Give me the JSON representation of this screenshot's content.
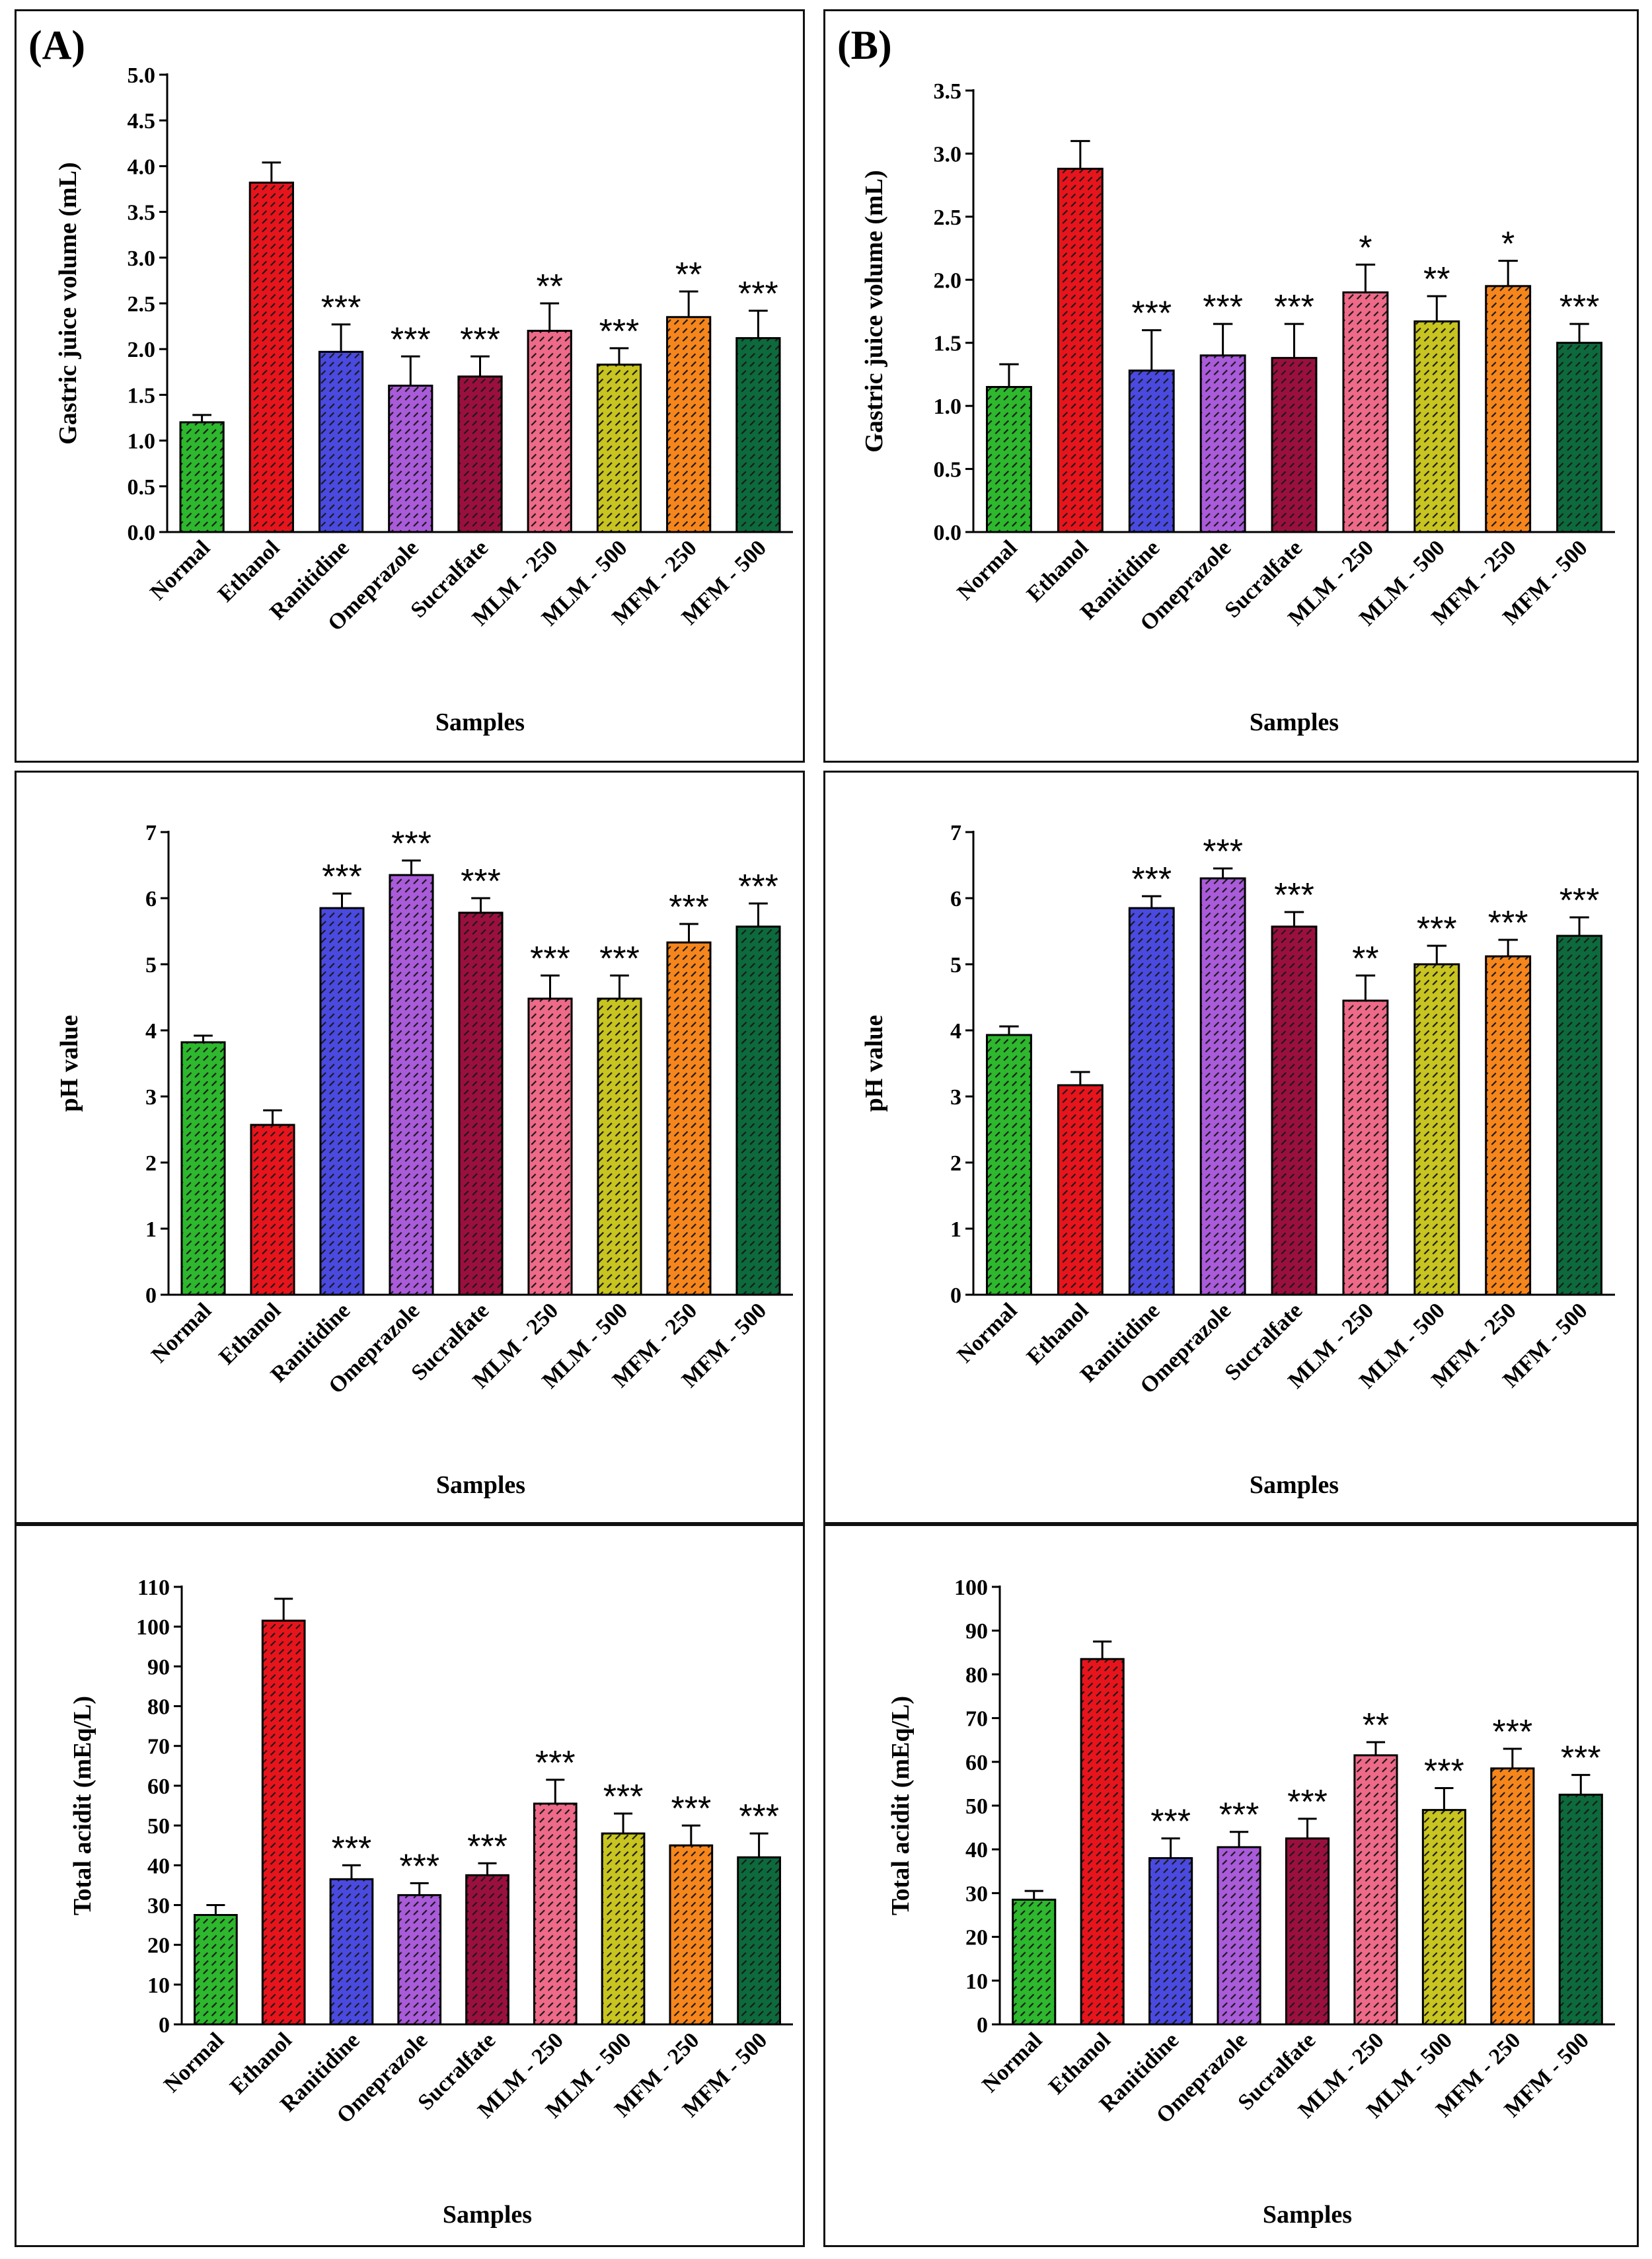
{
  "colors": {
    "Normal": "#2db82d",
    "Ethanol": "#e8141c",
    "Ranitidine": "#4a4ae0",
    "Omeprazole": "#a95bd9",
    "Sucralfate": "#9b0f3e",
    "MLM - 250": "#ee6a88",
    "MLM - 500": "#c8c420",
    "MFM - 250": "#f6861c",
    "MFM - 500": "#0c6a3c"
  },
  "chart_data": [
    {
      "type": "bar",
      "panel_label": "(A)",
      "title": "",
      "xlabel": "Samples",
      "ylabel": "Gastric juice volume (mL)",
      "ylim": [
        0,
        5.0
      ],
      "yticks": [
        "0.0",
        "0.5",
        "1.0",
        "1.5",
        "2.0",
        "2.5",
        "3.0",
        "3.5",
        "4.0",
        "4.5",
        "5.0"
      ],
      "categories": [
        "Normal",
        "Ethanol",
        "Ranitidine",
        "Omeprazole",
        "Sucralfate",
        "MLM - 250",
        "MLM - 500",
        "MFM - 250",
        "MFM - 500"
      ],
      "values": [
        1.2,
        3.82,
        1.97,
        1.6,
        1.7,
        2.2,
        1.83,
        2.35,
        2.12
      ],
      "errors": [
        0.08,
        0.22,
        0.3,
        0.32,
        0.22,
        0.3,
        0.18,
        0.28,
        0.3
      ],
      "annotations": [
        "",
        "",
        "***",
        "***",
        "***",
        "**",
        "***",
        "**",
        "***"
      ]
    },
    {
      "type": "bar",
      "panel_label": "(B)",
      "title": "",
      "xlabel": "Samples",
      "ylabel": "Gastric juice volume (mL)",
      "ylim": [
        0,
        3.5
      ],
      "yticks": [
        "0.0",
        "0.5",
        "1.0",
        "1.5",
        "2.0",
        "2.5",
        "3.0",
        "3.5"
      ],
      "categories": [
        "Normal",
        "Ethanol",
        "Ranitidine",
        "Omeprazole",
        "Sucralfate",
        "MLM - 250",
        "MLM - 500",
        "MFM - 250",
        "MFM - 500"
      ],
      "values": [
        1.15,
        2.88,
        1.28,
        1.4,
        1.38,
        1.9,
        1.67,
        1.95,
        1.5
      ],
      "errors": [
        0.18,
        0.22,
        0.32,
        0.25,
        0.27,
        0.22,
        0.2,
        0.2,
        0.15
      ],
      "annotations": [
        "",
        "",
        "***",
        "***",
        "***",
        "*",
        "**",
        "*",
        "***"
      ]
    },
    {
      "type": "bar",
      "panel_label": "",
      "title": "",
      "xlabel": "Samples",
      "ylabel": "pH value",
      "ylim": [
        0,
        7
      ],
      "yticks": [
        "0",
        "1",
        "2",
        "3",
        "4",
        "5",
        "6",
        "7"
      ],
      "categories": [
        "Normal",
        "Ethanol",
        "Ranitidine",
        "Omeprazole",
        "Sucralfate",
        "MLM - 250",
        "MLM - 500",
        "MFM - 250",
        "MFM - 500"
      ],
      "values": [
        3.82,
        2.57,
        5.85,
        6.35,
        5.78,
        4.48,
        4.48,
        5.33,
        5.57
      ],
      "errors": [
        0.1,
        0.22,
        0.22,
        0.22,
        0.22,
        0.35,
        0.35,
        0.28,
        0.35
      ],
      "annotations": [
        "",
        "",
        "***",
        "***",
        "***",
        "***",
        "***",
        "***",
        "***"
      ]
    },
    {
      "type": "bar",
      "panel_label": "",
      "title": "",
      "xlabel": "Samples",
      "ylabel": "pH value",
      "ylim": [
        0,
        7
      ],
      "yticks": [
        "0",
        "1",
        "2",
        "3",
        "4",
        "5",
        "6",
        "7"
      ],
      "categories": [
        "Normal",
        "Ethanol",
        "Ranitidine",
        "Omeprazole",
        "Sucralfate",
        "MLM - 250",
        "MLM - 500",
        "MFM - 250",
        "MFM - 500"
      ],
      "values": [
        3.93,
        3.17,
        5.85,
        6.3,
        5.57,
        4.45,
        5.0,
        5.12,
        5.43
      ],
      "errors": [
        0.13,
        0.2,
        0.18,
        0.15,
        0.22,
        0.38,
        0.28,
        0.25,
        0.28
      ],
      "annotations": [
        "",
        "",
        "***",
        "***",
        "***",
        "**",
        "***",
        "***",
        "***"
      ]
    },
    {
      "type": "bar",
      "panel_label": "",
      "title": "",
      "xlabel": "Samples",
      "ylabel": "Total acidit (mEq/L)",
      "ylim": [
        0,
        110
      ],
      "yticks": [
        "0",
        "10",
        "20",
        "30",
        "40",
        "50",
        "60",
        "70",
        "80",
        "90",
        "100",
        "110"
      ],
      "categories": [
        "Normal",
        "Ethanol",
        "Ranitidine",
        "Omeprazole",
        "Sucralfate",
        "MLM - 250",
        "MLM - 500",
        "MFM - 250",
        "MFM - 500"
      ],
      "values": [
        27.5,
        101.5,
        36.5,
        32.5,
        37.5,
        55.5,
        48.0,
        45.0,
        42.0
      ],
      "errors": [
        2.5,
        5.5,
        3.5,
        3.0,
        3.0,
        6.0,
        5.0,
        5.0,
        6.0
      ],
      "annotations": [
        "",
        "",
        "***",
        "***",
        "***",
        "***",
        "***",
        "***",
        "***"
      ]
    },
    {
      "type": "bar",
      "panel_label": "",
      "title": "",
      "xlabel": "Samples",
      "ylabel": "Total acidit (mEq/L)",
      "ylim": [
        0,
        100
      ],
      "yticks": [
        "0",
        "10",
        "20",
        "30",
        "40",
        "50",
        "60",
        "70",
        "80",
        "90",
        "100"
      ],
      "categories": [
        "Normal",
        "Ethanol",
        "Ranitidine",
        "Omeprazole",
        "Sucralfate",
        "MLM - 250",
        "MLM - 500",
        "MFM - 250",
        "MFM - 500"
      ],
      "values": [
        28.5,
        83.5,
        38.0,
        40.5,
        42.5,
        61.5,
        49.0,
        58.5,
        52.5
      ],
      "errors": [
        2.0,
        4.0,
        4.5,
        3.5,
        4.5,
        3.0,
        5.0,
        4.5,
        4.5
      ],
      "annotations": [
        "",
        "",
        "***",
        "***",
        "***",
        "**",
        "***",
        "***",
        "***"
      ]
    }
  ]
}
